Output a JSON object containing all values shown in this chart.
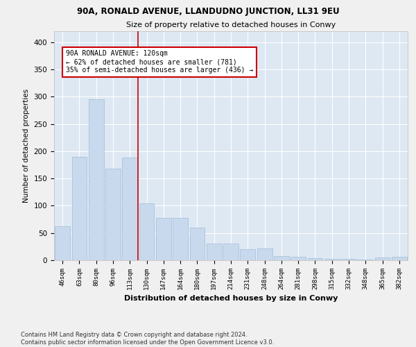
{
  "title1": "90A, RONALD AVENUE, LLANDUDNO JUNCTION, LL31 9EU",
  "title2": "Size of property relative to detached houses in Conwy",
  "xlabel": "Distribution of detached houses by size in Conwy",
  "ylabel": "Number of detached properties",
  "bar_labels": [
    "46sqm",
    "63sqm",
    "80sqm",
    "96sqm",
    "113sqm",
    "130sqm",
    "147sqm",
    "164sqm",
    "180sqm",
    "197sqm",
    "214sqm",
    "231sqm",
    "248sqm",
    "264sqm",
    "281sqm",
    "298sqm",
    "315sqm",
    "332sqm",
    "348sqm",
    "365sqm",
    "382sqm"
  ],
  "bar_values": [
    63,
    190,
    295,
    168,
    188,
    105,
    78,
    78,
    60,
    30,
    30,
    20,
    22,
    8,
    6,
    4,
    3,
    3,
    1,
    5,
    7
  ],
  "bar_color": "#c8d9ed",
  "bar_edgecolor": "#a0bcd8",
  "background_color": "#dde8f3",
  "fig_background_color": "#f0f0f0",
  "grid_color": "#ffffff",
  "vline_x": 4.5,
  "vline_color": "#cc0000",
  "annotation_line1": "90A RONALD AVENUE: 120sqm",
  "annotation_line2": "← 62% of detached houses are smaller (781)",
  "annotation_line3": "35% of semi-detached houses are larger (436) →",
  "annotation_box_edgecolor": "#cc0000",
  "annotation_box_facecolor": "#ffffff",
  "ylim": [
    0,
    420
  ],
  "yticks": [
    0,
    50,
    100,
    150,
    200,
    250,
    300,
    350,
    400
  ],
  "footnote": "Contains HM Land Registry data © Crown copyright and database right 2024.\nContains public sector information licensed under the Open Government Licence v3.0."
}
